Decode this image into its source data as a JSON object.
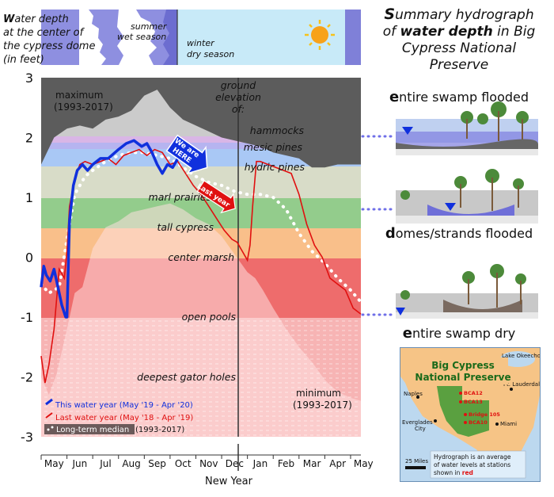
{
  "header": {
    "water_depth_w": "W",
    "water_depth_l1": "ater depth",
    "water_depth_l2": "at the center of",
    "water_depth_l3": "the cypress dome",
    "water_depth_l4": "(in feet)",
    "summer_l1": "summer",
    "summer_l2": "wet season",
    "winter_l1": "winter",
    "winter_l2": "dry season"
  },
  "side": {
    "title_l1": "Summary hydrograph",
    "title_l2": "of water depth in Big",
    "title_l3": "Cypress National",
    "title_l4": "Preserve",
    "zone_flooded": "entire swamp flooded",
    "zone_domes": "domes/strands flooded",
    "zone_dry": "entire swamp dry"
  },
  "map": {
    "title_l1": "Big Cypress",
    "title_l2": "National Preserve",
    "lake": "Lake Okeechobee",
    "ft_lauderdale": "Ft. Lauderdale",
    "naples": "Naples",
    "everglades_l1": "Everglades",
    "everglades_l2": "City",
    "miami": "Miami",
    "stations": [
      "BCA12",
      "BCA13",
      "Bridge 105",
      "BCA10"
    ],
    "scale": "25 Miles",
    "note_l1": "Hydrograph is an average",
    "note_l2": "of water levels at stations",
    "note_l3": "shown in",
    "note_red": "red"
  },
  "colors": {
    "this_year": "#1030dd",
    "last_year": "#e01010",
    "median": "#ffffff",
    "max_band": "#5c5c5c",
    "min_band": "#c8c8c8"
  },
  "chart_data": {
    "type": "line",
    "xlabel": "New Year",
    "x_ticks": [
      "May",
      "Jun",
      "Jul",
      "Aug",
      "Sep",
      "Oct",
      "Nov",
      "Dec",
      "Jan",
      "Feb",
      "Mar",
      "Apr",
      "May"
    ],
    "y_ticks": [
      "3",
      "2",
      "1",
      "0",
      "-1",
      "-2",
      "-3"
    ],
    "ylim": [
      -3,
      3
    ],
    "xlim": [
      0,
      12.4
    ],
    "habitat_zones": [
      {
        "label": "hammocks",
        "y": 2.0
      },
      {
        "label": "mesic pines",
        "y": 1.8
      },
      {
        "label": "hydric pines",
        "y": 1.5
      },
      {
        "label": "marl prairies",
        "y": 1.0
      },
      {
        "label": "tall cypress",
        "y": 0.5
      },
      {
        "label": "center marsh",
        "y": 0.0
      },
      {
        "label": "open pools",
        "y": -1.0
      },
      {
        "label": "deepest gator holes",
        "y": -2.0
      }
    ],
    "ground_elevation_l1": "ground",
    "ground_elevation_l2": "elevation",
    "ground_elevation_l3": "of:",
    "max_label_l1": "maximum",
    "max_label_l2": "(1993-2017)",
    "min_label_l1": "minimum",
    "min_label_l2": "(1993-2017)",
    "we_are_here_l1": "We are",
    "we_are_here_l2": "HERE",
    "last_year_tag": "Last year",
    "legend": [
      {
        "label": "This water year (May '19 - Apr '20)",
        "style": "blue"
      },
      {
        "label": "Last water year (May '18 - Apr '19)",
        "style": "red"
      },
      {
        "label": "Long-term median",
        "suffix": "(1993-2017)",
        "style": "median"
      }
    ],
    "series": [
      {
        "name": "This water year (May '19 - Apr '20)",
        "x": [
          0.0,
          0.1,
          0.2,
          0.35,
          0.5,
          0.65,
          0.8,
          0.95,
          1.0,
          1.1,
          1.25,
          1.4,
          1.6,
          1.8,
          2.0,
          2.3,
          2.6,
          3.0,
          3.3,
          3.6,
          3.9,
          4.1,
          4.3,
          4.5,
          4.7,
          4.9,
          5.1,
          5.3,
          5.45
        ],
        "y": [
          -0.5,
          -0.15,
          -0.3,
          -0.4,
          -0.2,
          -0.5,
          -0.8,
          -1.0,
          -1.0,
          0.6,
          1.2,
          1.45,
          1.55,
          1.45,
          1.55,
          1.65,
          1.65,
          1.8,
          1.9,
          1.95,
          1.85,
          1.9,
          1.75,
          1.55,
          1.4,
          1.55,
          1.5,
          1.65,
          1.75
        ]
      },
      {
        "name": "Last water year (May '18 - Apr '19)",
        "x": [
          0.0,
          0.15,
          0.3,
          0.5,
          0.7,
          0.9,
          1.0,
          1.1,
          1.3,
          1.5,
          1.7,
          2.0,
          2.3,
          2.6,
          2.9,
          3.2,
          3.5,
          3.8,
          4.1,
          4.4,
          4.7,
          5.0,
          5.3,
          5.6,
          5.9,
          6.2,
          6.5,
          6.8,
          7.1,
          7.4,
          7.6,
          7.8,
          8.0,
          8.1,
          8.2,
          8.35,
          8.5,
          8.8,
          9.1,
          9.4,
          9.7,
          10.0,
          10.3,
          10.6,
          10.9,
          11.2,
          11.5,
          11.8,
          12.1,
          12.4
        ],
        "y": [
          -1.65,
          -2.1,
          -1.8,
          -1.2,
          -0.2,
          -0.35,
          0.1,
          0.85,
          1.3,
          1.55,
          1.6,
          1.55,
          1.6,
          1.65,
          1.55,
          1.7,
          1.75,
          1.8,
          1.7,
          1.8,
          1.75,
          1.55,
          1.6,
          1.4,
          1.2,
          1.05,
          0.85,
          0.65,
          0.45,
          0.3,
          0.25,
          0.1,
          -0.05,
          0.2,
          0.85,
          1.6,
          1.6,
          1.55,
          1.5,
          1.45,
          1.4,
          1.05,
          0.55,
          0.2,
          0.0,
          -0.35,
          -0.45,
          -0.55,
          -0.85,
          -0.95
        ]
      },
      {
        "name": "Long-term median",
        "x": [
          0.0,
          0.3,
          0.7,
          1.0,
          1.3,
          1.7,
          2.0,
          2.5,
          3.0,
          3.5,
          4.0,
          4.5,
          5.0,
          5.5,
          6.0,
          6.5,
          7.0,
          7.5,
          8.0,
          8.5,
          9.0,
          9.5,
          10.0,
          10.5,
          11.0,
          11.5,
          12.0,
          12.4
        ],
        "y": [
          -0.45,
          -0.6,
          -0.5,
          0.3,
          1.05,
          1.35,
          1.45,
          1.6,
          1.7,
          1.75,
          1.75,
          1.7,
          1.65,
          1.5,
          1.35,
          1.25,
          1.2,
          1.1,
          1.05,
          1.05,
          1.0,
          0.8,
          0.4,
          0.1,
          -0.1,
          -0.35,
          -0.55,
          -0.75
        ]
      }
    ],
    "range_max": {
      "name": "maximum",
      "x": [
        0,
        0.5,
        1,
        1.5,
        2,
        2.5,
        3,
        3.5,
        4,
        4.5,
        5,
        5.5,
        6,
        6.5,
        7,
        7.5,
        8,
        8.5,
        9,
        9.5,
        10,
        10.5,
        11,
        11.5,
        12,
        12.4
      ],
      "y": [
        1.55,
        2.0,
        2.15,
        2.2,
        2.15,
        2.3,
        2.35,
        2.45,
        2.7,
        2.8,
        2.5,
        2.3,
        2.2,
        2.1,
        2.0,
        1.95,
        1.9,
        1.85,
        1.75,
        1.7,
        1.65,
        1.5,
        1.5,
        1.55,
        1.55,
        1.55
      ]
    },
    "range_min": {
      "name": "minimum",
      "x": [
        0,
        0.3,
        0.6,
        1,
        1.3,
        1.6,
        2,
        2.5,
        3,
        3.5,
        4,
        4.5,
        5,
        5.5,
        6,
        6.5,
        7,
        7.5,
        8,
        8.3,
        8.6,
        9,
        9.5,
        10,
        10.5,
        11,
        11.5,
        12,
        12.4
      ],
      "y": [
        -2.0,
        -2.3,
        -1.95,
        -1.2,
        -0.6,
        -0.5,
        0.15,
        0.5,
        0.6,
        0.75,
        0.8,
        0.85,
        0.9,
        0.8,
        0.65,
        0.55,
        0.35,
        0.05,
        -0.25,
        -0.35,
        -0.55,
        -0.85,
        -1.2,
        -1.5,
        -1.75,
        -2.05,
        -2.25,
        -2.35,
        -2.4
      ]
    }
  }
}
